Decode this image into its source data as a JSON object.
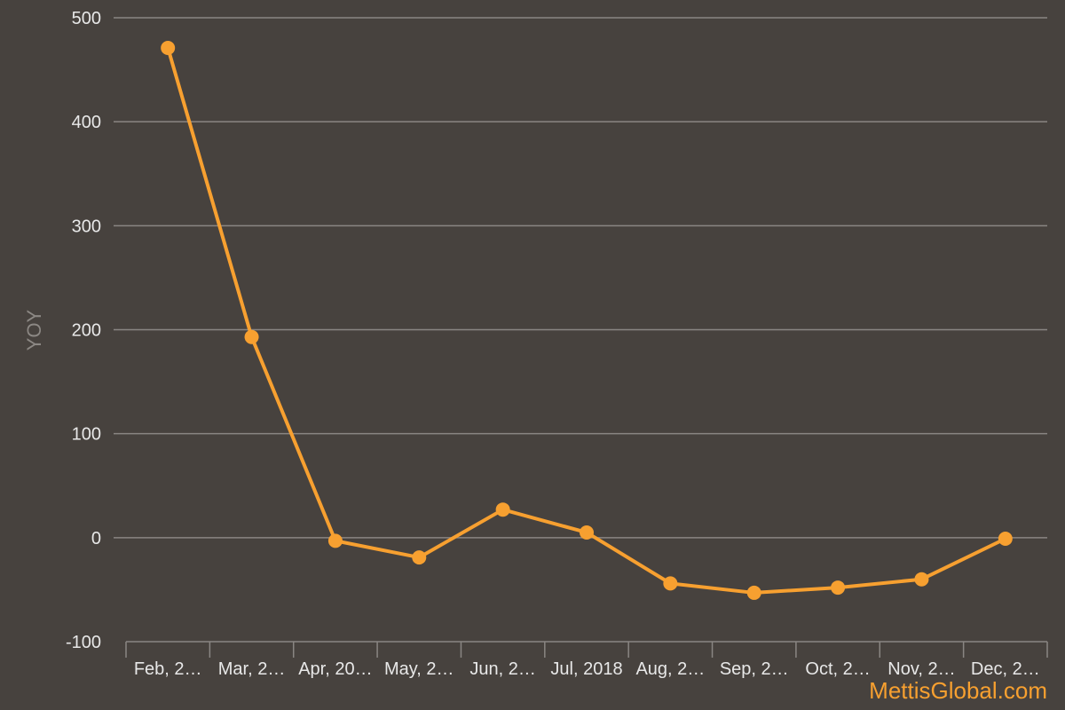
{
  "chart_data": {
    "type": "line",
    "title": "",
    "xlabel": "",
    "ylabel": "YOY",
    "categories": [
      "Feb, 2…",
      "Mar, 2…",
      "Apr, 20…",
      "May, 2…",
      "Jun, 2…",
      "Jul, 2018",
      "Aug, 2…",
      "Sep, 2…",
      "Oct, 2…",
      "Nov, 2…",
      "Dec, 2…"
    ],
    "series": [
      {
        "values": [
          471,
          193,
          -3,
          -19,
          27,
          5,
          -44,
          -53,
          -48,
          -40,
          -1
        ]
      }
    ],
    "ylim": [
      -100,
      500
    ],
    "yticks": [
      -100,
      0,
      100,
      200,
      300,
      400,
      500
    ],
    "grid": true,
    "legend": "none",
    "colors": {
      "line": "#f7a030",
      "background": "#47423e",
      "grid": "#8a8683"
    }
  },
  "watermark": "MettisGlobal.com"
}
